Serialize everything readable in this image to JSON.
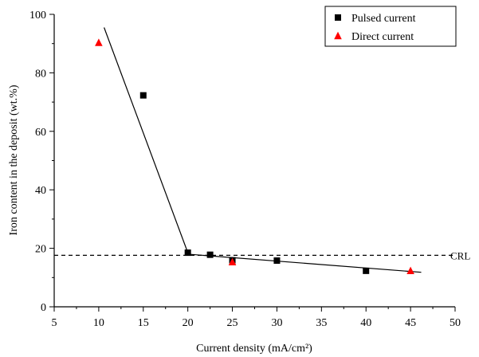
{
  "chart_data": {
    "type": "scatter",
    "xlabel": "Current density (mA/cm²)",
    "ylabel": "Iron content in the deposit (wt.%)",
    "xlim": [
      5,
      50
    ],
    "ylim": [
      0,
      100
    ],
    "xticks": [
      5,
      10,
      15,
      20,
      25,
      30,
      35,
      40,
      45,
      50
    ],
    "yticks": [
      0,
      20,
      40,
      60,
      80,
      100
    ],
    "grid": false,
    "legend": "top-right",
    "series": [
      {
        "name": "Pulsed current",
        "marker": "square",
        "color": "#000000",
        "points": [
          [
            15,
            72.3
          ],
          [
            20,
            18.5
          ],
          [
            22.5,
            17.8
          ],
          [
            25,
            15.9
          ],
          [
            30,
            15.8
          ],
          [
            40,
            12.3
          ]
        ]
      },
      {
        "name": "Direct current",
        "marker": "triangle",
        "color": "#ff0000",
        "points": [
          [
            10,
            90.3
          ],
          [
            25,
            15.3
          ],
          [
            45,
            12.3
          ]
        ]
      }
    ],
    "fit_lines": [
      {
        "style": "solid",
        "points": [
          [
            10.6,
            95.5
          ],
          [
            20,
            18.5
          ]
        ]
      },
      {
        "style": "solid",
        "points": [
          [
            20,
            18.0
          ],
          [
            46.2,
            11.8
          ]
        ]
      }
    ],
    "reference_line": {
      "label": "CRL",
      "y": 17.6,
      "style": "dashed",
      "color": "#000000"
    }
  }
}
